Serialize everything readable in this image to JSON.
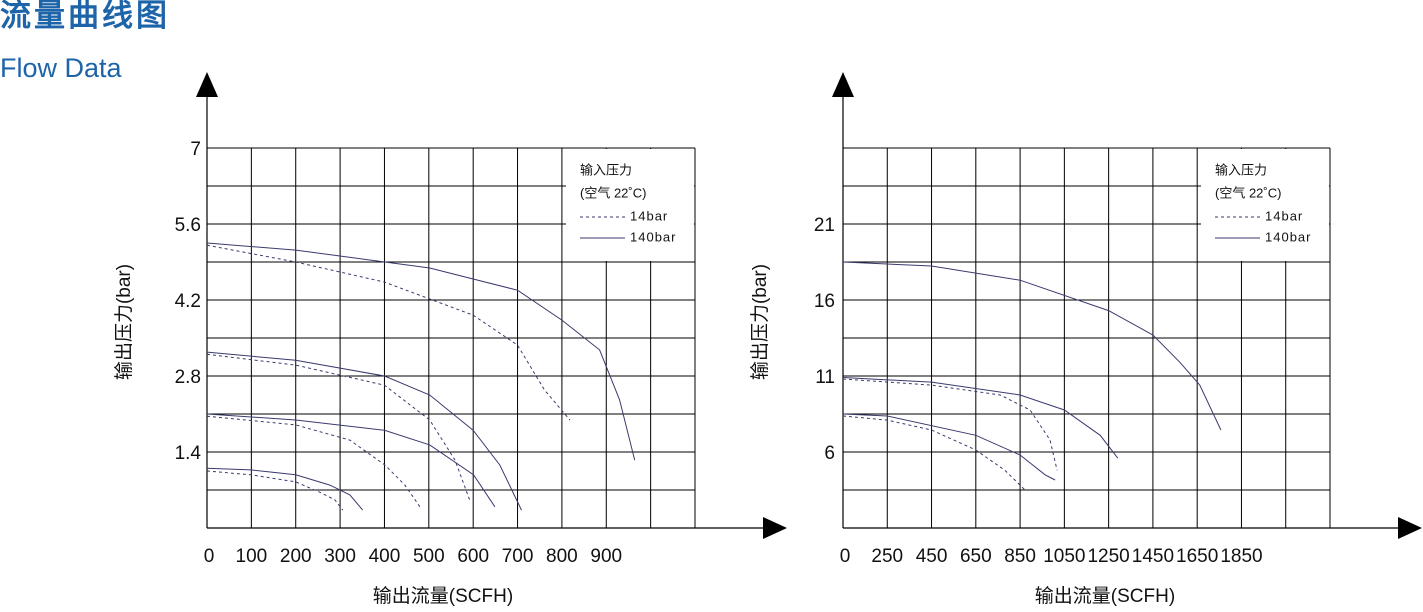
{
  "header": {
    "title": "流量曲线图",
    "subtitle": "Flow Data"
  },
  "chart_data": [
    {
      "type": "line",
      "x_label": "输出流量(SCFH)",
      "y_label": "输出压力(bar)",
      "xlim": [
        0,
        1100
      ],
      "ylim": [
        0,
        7
      ],
      "xticks": [
        0,
        100,
        200,
        300,
        400,
        500,
        600,
        700,
        800,
        900
      ],
      "yticks": [
        1.4,
        2.8,
        4.2,
        5.6,
        7
      ],
      "grid": true,
      "legend_title": [
        "输入压力",
        "(空气 22˚C)"
      ],
      "series": [
        {
          "name": "14bar",
          "color": "#3a3a6e",
          "dashed": true,
          "curves": [
            {
              "x": [
                0,
                200,
                400,
                600,
                700,
                761,
                818
              ],
              "y": [
                5.21,
                4.9,
                4.53,
                3.92,
                3.37,
                2.54,
                1.99
              ]
            },
            {
              "x": [
                0,
                200,
                400,
                502,
                559,
                592
              ],
              "y": [
                3.2,
                3.0,
                2.63,
                1.99,
                1.25,
                0.52
              ]
            },
            {
              "x": [
                0,
                200,
                322,
                401,
                446,
                480
              ],
              "y": [
                2.06,
                1.9,
                1.62,
                1.16,
                0.79,
                0.39
              ]
            },
            {
              "x": [
                0,
                99,
                200,
                254,
                288,
                306
              ],
              "y": [
                1.05,
                0.98,
                0.85,
                0.66,
                0.52,
                0.33
              ]
            }
          ]
        },
        {
          "name": "140bar",
          "color": "#3a3a6e",
          "dashed": false,
          "curves": [
            {
              "x": [
                0,
                200,
                401,
                502,
                700,
                800,
                885,
                930,
                964
              ],
              "y": [
                5.25,
                5.12,
                4.9,
                4.79,
                4.38,
                3.83,
                3.28,
                2.36,
                1.25
              ]
            },
            {
              "x": [
                0,
                200,
                400,
                502,
                600,
                660,
                709
              ],
              "y": [
                3.24,
                3.09,
                2.8,
                2.45,
                1.8,
                1.16,
                0.33
              ]
            },
            {
              "x": [
                0,
                200,
                400,
                502,
                601,
                649
              ],
              "y": [
                2.1,
                1.99,
                1.8,
                1.53,
                0.98,
                0.39
              ]
            },
            {
              "x": [
                0,
                99,
                200,
                277,
                322,
                351
              ],
              "y": [
                1.1,
                1.07,
                0.98,
                0.79,
                0.61,
                0.33
              ]
            }
          ]
        }
      ]
    },
    {
      "type": "line",
      "x_label": "输出流量(SCFH)",
      "y_label": "输出压力(bar)",
      "xlim": [
        0,
        2250
      ],
      "ylim": [
        1,
        26
      ],
      "xticks": [
        0,
        250,
        450,
        650,
        850,
        1050,
        1250,
        1450,
        1650,
        1850
      ],
      "yticks": [
        6,
        11,
        16,
        21
      ],
      "grid": true,
      "legend_title": [
        "输入压力",
        "(空气 22˚C)"
      ],
      "series": [
        {
          "name": "14bar",
          "color": "#3a3a6e",
          "dashed": true,
          "curves": [
            {
              "x": [
                0,
                450,
                760,
                895,
                985,
                1017
              ],
              "y": [
                10.8,
                10.4,
                9.75,
                8.76,
                6.79,
                4.8
              ]
            },
            {
              "x": [
                0,
                250,
                450,
                650,
                781,
                872
              ],
              "y": [
                8.37,
                8.1,
                7.45,
                6.13,
                4.8,
                3.5
              ]
            }
          ]
        },
        {
          "name": "140bar",
          "color": "#3a3a6e",
          "dashed": false,
          "curves": [
            {
              "x": [
                0,
                450,
                850,
                1250,
                1450,
                1572,
                1662,
                1757
              ],
              "y": [
                18.5,
                18.24,
                17.3,
                15.3,
                13.7,
                11.9,
                10.4,
                7.45
              ]
            },
            {
              "x": [
                0,
                450,
                850,
                1050,
                1212,
                1291
              ],
              "y": [
                10.9,
                10.6,
                9.75,
                8.76,
                7.1,
                5.6
              ]
            },
            {
              "x": [
                0,
                250,
                650,
                850,
                963,
                1008
              ],
              "y": [
                8.5,
                8.37,
                7.1,
                5.8,
                4.5,
                4.16
              ]
            }
          ]
        }
      ]
    }
  ]
}
